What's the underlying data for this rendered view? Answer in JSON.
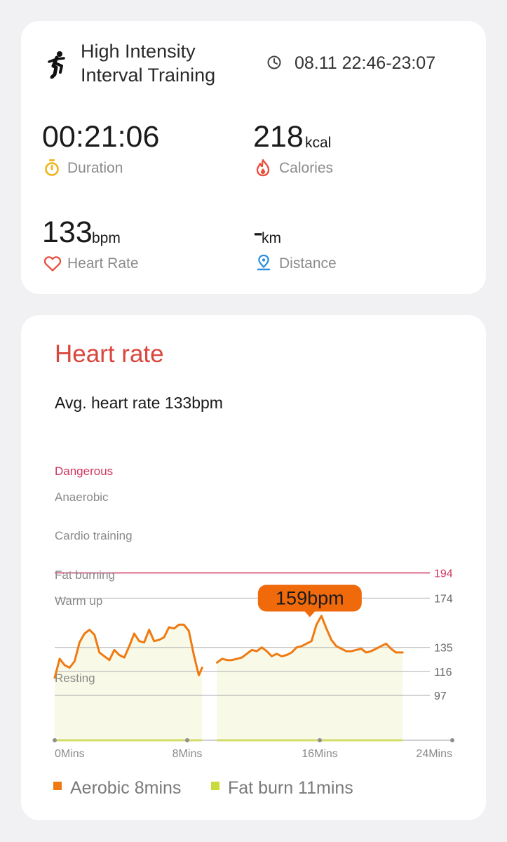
{
  "summary": {
    "workout_icon": "running-person-icon",
    "title_line1": "High Intensity",
    "title_line2": "Interval Training",
    "clock_icon": "clock-icon",
    "time_range": "08.11 22:46-23:07",
    "duration": {
      "value": "00:21:06",
      "label": "Duration",
      "icon": "stopwatch-icon"
    },
    "calories": {
      "value": "218",
      "unit": "kcal",
      "label": "Calories",
      "icon": "flame-icon"
    },
    "heart_rate": {
      "value": "133",
      "unit": "bpm",
      "label": "Heart Rate",
      "icon": "heart-icon"
    },
    "distance": {
      "value": "-",
      "unit": "km",
      "label": "Distance",
      "icon": "location-pin-icon"
    }
  },
  "heart_card": {
    "title": "Heart rate",
    "avg_text": "Avg. heart rate 133bpm",
    "legend": [
      {
        "label": "Aerobic 8mins",
        "color": "#f07a12"
      },
      {
        "label": "Fat burn 11mins",
        "color": "#c9da3a"
      }
    ]
  },
  "chart_data": {
    "type": "line",
    "title": "",
    "xlabel": "",
    "ylabel": "",
    "x_unit": "Mins",
    "xlim": [
      0,
      24
    ],
    "x_ticks": [
      "0Mins",
      "8Mins",
      "16Mins",
      "24Mins"
    ],
    "x_tick_values": [
      0,
      8,
      16,
      24
    ],
    "zones": [
      {
        "name": "Dangerous",
        "threshold": 194,
        "color": "#d2365f"
      },
      {
        "name": "Anaerobic",
        "threshold": 174
      },
      {
        "name": "Cardio training",
        "threshold": 135
      },
      {
        "name": "Fat burning",
        "threshold": 116
      },
      {
        "name": "Warm up",
        "threshold": 97
      },
      {
        "name": "Resting",
        "threshold": null
      }
    ],
    "callout": {
      "label": "159bpm",
      "x": 15.4,
      "y": 159
    },
    "line_color": "#f07a12",
    "series": [
      {
        "x": [
          0.0,
          0.3,
          0.6,
          0.9,
          1.2,
          1.5,
          1.8,
          2.1,
          2.4,
          2.7,
          3.0,
          3.3,
          3.6,
          3.9,
          4.2,
          4.5,
          4.8,
          5.1,
          5.4,
          5.7,
          6.0,
          6.3,
          6.6,
          6.9,
          7.2,
          7.5,
          7.8,
          8.1,
          8.4,
          8.7,
          8.9
        ],
        "y": [
          111,
          126,
          121,
          119,
          124,
          139,
          146,
          149,
          145,
          131,
          128,
          125,
          133,
          129,
          127,
          136,
          146,
          140,
          139,
          149,
          140,
          141,
          143,
          151,
          150,
          153,
          153,
          148,
          129,
          113,
          119
        ]
      },
      {
        "x": [
          9.8,
          10.1,
          10.4,
          10.7,
          11.0,
          11.3,
          11.6,
          11.9,
          12.2,
          12.5,
          12.8,
          13.1,
          13.4,
          13.7,
          14.0,
          14.3,
          14.6,
          14.9,
          15.2,
          15.5,
          15.8,
          16.1,
          16.4,
          16.7,
          17.0,
          17.3,
          17.6,
          17.9,
          18.2,
          18.5,
          18.8,
          19.1,
          19.4,
          19.7,
          20.0,
          20.3,
          20.6,
          21.0
        ],
        "y": [
          123,
          126,
          125,
          125,
          126,
          127,
          130,
          133,
          132,
          135,
          132,
          128,
          130,
          128,
          129,
          131,
          135,
          136,
          138,
          140,
          153,
          160,
          150,
          141,
          136,
          134,
          132,
          132,
          133,
          134,
          131,
          132,
          134,
          136,
          138,
          134,
          131,
          131
        ]
      }
    ]
  }
}
